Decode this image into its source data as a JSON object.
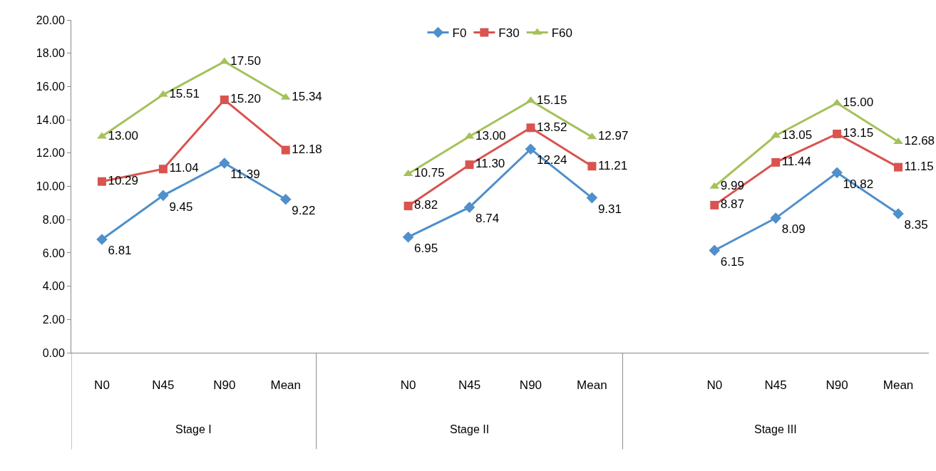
{
  "chart_data": {
    "type": "line",
    "categories": [
      "N0",
      "N45",
      "N90",
      "Mean",
      null,
      "N0",
      "N45",
      "N90",
      "Mean",
      null,
      "N0",
      "N45",
      "N90",
      "Mean"
    ],
    "series": [
      {
        "name": "F0",
        "color": "#4f8fcb",
        "marker": "diamond",
        "values": [
          6.81,
          9.45,
          11.39,
          9.22,
          null,
          6.95,
          8.74,
          12.24,
          9.31,
          null,
          6.15,
          8.09,
          10.82,
          8.35
        ],
        "value_labels": [
          "6.81",
          "9.45",
          "11.39",
          "9.22",
          null,
          "6.95",
          "8.74",
          "12.24",
          "9.31",
          null,
          "6.15",
          "8.09",
          "10.82",
          "8.35"
        ]
      },
      {
        "name": "F30",
        "color": "#d9534f",
        "marker": "square",
        "values": [
          10.29,
          11.04,
          15.2,
          12.18,
          null,
          8.82,
          11.3,
          13.52,
          11.21,
          null,
          8.87,
          11.44,
          13.15,
          11.15
        ],
        "value_labels": [
          "10.29",
          "11.04",
          "15.20",
          "12.18",
          null,
          "8.82",
          "11.30",
          "13.52",
          "11.21",
          null,
          "8.87",
          "11.44",
          "13.15",
          "11.15"
        ]
      },
      {
        "name": "F60",
        "color": "#a5c15a",
        "marker": "triangle",
        "values": [
          13.0,
          15.51,
          17.5,
          15.34,
          null,
          10.75,
          13.0,
          15.15,
          12.97,
          null,
          9.99,
          13.05,
          15.0,
          12.68
        ],
        "value_labels": [
          "13.00",
          "15.51",
          "17.50",
          "15.34",
          null,
          "10.75",
          "13.00",
          "15.15",
          "12.97",
          null,
          "9.99",
          "13.05",
          "15.00",
          "12.68"
        ]
      }
    ],
    "annotations": [
      "Stage I",
      "Stage II",
      "Stage III"
    ],
    "ylim": [
      0,
      20
    ],
    "yticks": [
      {
        "value": 0,
        "label": "0.00"
      },
      {
        "value": 2,
        "label": "2.00"
      },
      {
        "value": 4,
        "label": "4.00"
      },
      {
        "value": 6,
        "label": "6.00"
      },
      {
        "value": 8,
        "label": "8.00"
      },
      {
        "value": 10,
        "label": "10.00"
      },
      {
        "value": 12,
        "label": "12.00"
      },
      {
        "value": 14,
        "label": "14.00"
      },
      {
        "value": 16,
        "label": "16.00"
      },
      {
        "value": 18,
        "label": "18.00"
      },
      {
        "value": 20,
        "label": "20.00"
      }
    ],
    "grid": false,
    "legend": "top",
    "line_style": "solid"
  }
}
